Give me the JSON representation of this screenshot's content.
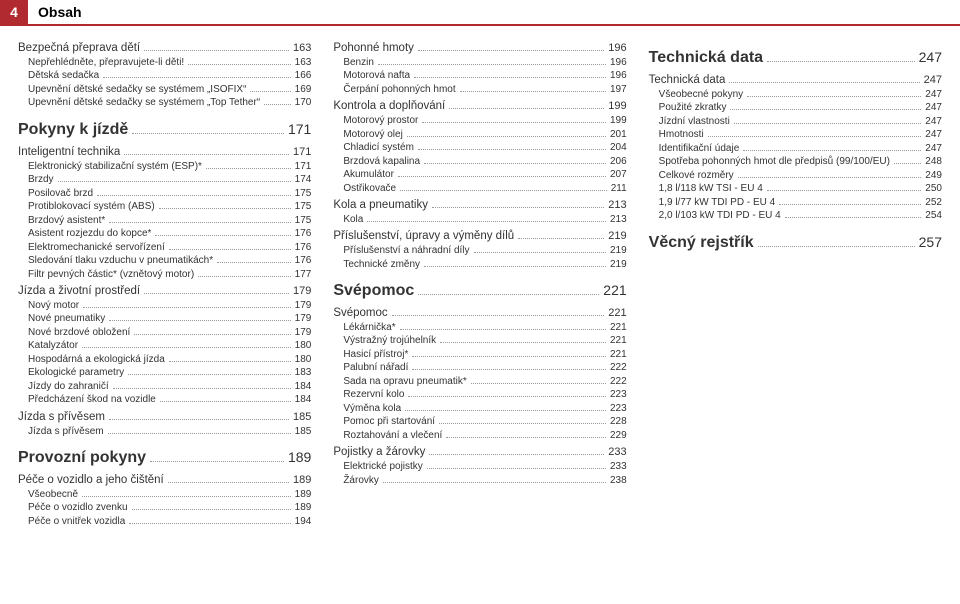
{
  "header": {
    "page_number": "4",
    "title": "Obsah"
  },
  "colors": {
    "accent": "#b02a30",
    "text": "#333333",
    "bg": "#ffffff",
    "dots": "#999999"
  },
  "columns": [
    [
      {
        "level": 1,
        "label": "Bezpečná přeprava dětí",
        "page": "163"
      },
      {
        "level": 2,
        "label": "Nepřehlédněte, přepravujete-li děti!",
        "page": "163"
      },
      {
        "level": 2,
        "label": "Dětská sedačka",
        "page": "166"
      },
      {
        "level": 2,
        "label": "Upevnění dětské sedačky se systémem „ISOFIX“",
        "page": "169"
      },
      {
        "level": 2,
        "label": "Upevnění dětské sedačky se systémem „Top Tether“",
        "page": "170"
      },
      {
        "level": 0,
        "label": "Pokyny k jízdě",
        "page": "171"
      },
      {
        "level": 1,
        "label": "Inteligentní technika",
        "page": "171"
      },
      {
        "level": 2,
        "label": "Elektronický stabilizační systém (ESP)*",
        "page": "171"
      },
      {
        "level": 2,
        "label": "Brzdy",
        "page": "174"
      },
      {
        "level": 2,
        "label": "Posilovač brzd",
        "page": "175"
      },
      {
        "level": 2,
        "label": "Protiblokovací systém (ABS)",
        "page": "175"
      },
      {
        "level": 2,
        "label": "Brzdový asistent*",
        "page": "175"
      },
      {
        "level": 2,
        "label": "Asistent rozjezdu do kopce*",
        "page": "176"
      },
      {
        "level": 2,
        "label": "Elektromechanické servořízení",
        "page": "176"
      },
      {
        "level": 2,
        "label": "Sledování tlaku vzduchu v pneumatikách*",
        "page": "176"
      },
      {
        "level": 2,
        "label": "Filtr pevných částic* (vznětový motor)",
        "page": "177"
      },
      {
        "level": 1,
        "label": "Jízda a životní prostředí",
        "page": "179"
      },
      {
        "level": 2,
        "label": "Nový motor",
        "page": "179"
      },
      {
        "level": 2,
        "label": "Nové pneumatiky",
        "page": "179"
      },
      {
        "level": 2,
        "label": "Nové brzdové obložení",
        "page": "179"
      },
      {
        "level": 2,
        "label": "Katalyzátor",
        "page": "180"
      },
      {
        "level": 2,
        "label": "Hospodárná a ekologická jízda",
        "page": "180"
      },
      {
        "level": 2,
        "label": "Ekologické parametry",
        "page": "183"
      },
      {
        "level": 2,
        "label": "Jízdy do zahraničí",
        "page": "184"
      },
      {
        "level": 2,
        "label": "Předcházení škod na vozidle",
        "page": "184"
      },
      {
        "level": 1,
        "label": "Jízda s přívěsem",
        "page": "185"
      },
      {
        "level": 2,
        "label": "Jízda s přívěsem",
        "page": "185"
      },
      {
        "level": 0,
        "label": "Provozní pokyny",
        "page": "189"
      },
      {
        "level": 1,
        "label": "Péče o vozidlo a jeho čištění",
        "page": "189"
      },
      {
        "level": 2,
        "label": "Všeobecně",
        "page": "189"
      },
      {
        "level": 2,
        "label": "Péče o vozidlo zvenku",
        "page": "189"
      },
      {
        "level": 2,
        "label": "Péče o vnitřek vozidla",
        "page": "194"
      }
    ],
    [
      {
        "level": 1,
        "label": "Pohonné hmoty",
        "page": "196"
      },
      {
        "level": 2,
        "label": "Benzin",
        "page": "196"
      },
      {
        "level": 2,
        "label": "Motorová nafta",
        "page": "196"
      },
      {
        "level": 2,
        "label": "Čerpání pohonných hmot",
        "page": "197"
      },
      {
        "level": 1,
        "label": "Kontrola a doplňování",
        "page": "199"
      },
      {
        "level": 2,
        "label": "Motorový prostor",
        "page": "199"
      },
      {
        "level": 2,
        "label": "Motorový olej",
        "page": "201"
      },
      {
        "level": 2,
        "label": "Chladicí systém",
        "page": "204"
      },
      {
        "level": 2,
        "label": "Brzdová kapalina",
        "page": "206"
      },
      {
        "level": 2,
        "label": "Akumulátor",
        "page": "207"
      },
      {
        "level": 2,
        "label": "Ostřikovače",
        "page": "211"
      },
      {
        "level": 1,
        "label": "Kola a pneumatiky",
        "page": "213"
      },
      {
        "level": 2,
        "label": "Kola",
        "page": "213"
      },
      {
        "level": 1,
        "label": "Příslušenství, úpravy a výměny dílů",
        "page": "219"
      },
      {
        "level": 2,
        "label": "Příslušenství a náhradní díly",
        "page": "219"
      },
      {
        "level": 2,
        "label": "Technické změny",
        "page": "219"
      },
      {
        "level": 0,
        "label": "Svépomoc",
        "page": "221"
      },
      {
        "level": 1,
        "label": "Svépomoc",
        "page": "221"
      },
      {
        "level": 2,
        "label": "Lékárnička*",
        "page": "221"
      },
      {
        "level": 2,
        "label": "Výstražný trojúhelník",
        "page": "221"
      },
      {
        "level": 2,
        "label": "Hasicí přístroj*",
        "page": "221"
      },
      {
        "level": 2,
        "label": "Palubní nářadí",
        "page": "222"
      },
      {
        "level": 2,
        "label": "Sada na opravu pneumatik*",
        "page": "222"
      },
      {
        "level": 2,
        "label": "Rezervní kolo",
        "page": "223"
      },
      {
        "level": 2,
        "label": "Výměna kola",
        "page": "223"
      },
      {
        "level": 2,
        "label": "Pomoc při startování",
        "page": "228"
      },
      {
        "level": 2,
        "label": "Roztahování a vlečení",
        "page": "229"
      },
      {
        "level": 1,
        "label": "Pojistky a žárovky",
        "page": "233"
      },
      {
        "level": 2,
        "label": "Elektrické pojistky",
        "page": "233"
      },
      {
        "level": 2,
        "label": "Žárovky",
        "page": "238"
      }
    ],
    [
      {
        "level": 0,
        "label": "Technická data",
        "page": "247"
      },
      {
        "level": 1,
        "label": "Technická data",
        "page": "247"
      },
      {
        "level": 2,
        "label": "Všeobecné pokyny",
        "page": "247"
      },
      {
        "level": 2,
        "label": "Použité zkratky",
        "page": "247"
      },
      {
        "level": 2,
        "label": "Jízdní vlastnosti",
        "page": "247"
      },
      {
        "level": 2,
        "label": "Hmotnosti",
        "page": "247"
      },
      {
        "level": 2,
        "label": "Identifikační údaje",
        "page": "247"
      },
      {
        "level": 2,
        "label": "Spotřeba pohonných hmot dle předpisů (99/100/EU)",
        "page": "248"
      },
      {
        "level": 2,
        "label": "Celkové rozměry",
        "page": "249"
      },
      {
        "level": 2,
        "label": "1,8 l/118 kW TSI - EU 4",
        "page": "250"
      },
      {
        "level": 2,
        "label": "1,9 l/77 kW TDI PD - EU 4",
        "page": "252"
      },
      {
        "level": 2,
        "label": "2,0 l/103 kW TDI PD - EU 4",
        "page": "254"
      },
      {
        "level": 0,
        "label": "Věcný rejstřík",
        "page": "257"
      }
    ]
  ]
}
